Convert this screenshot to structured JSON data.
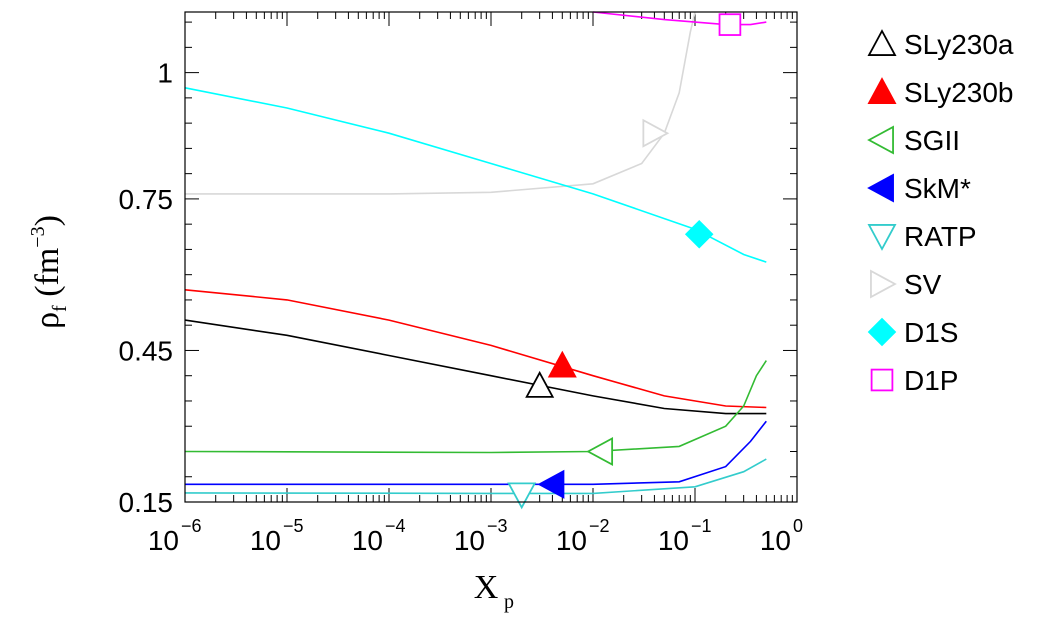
{
  "chart_data": {
    "type": "line",
    "xscale": "log",
    "xlim": [
      1e-06,
      1
    ],
    "ylim": [
      0.15,
      1.12
    ],
    "xlabel": {
      "main": "X",
      "sub": "p"
    },
    "ylabel": {
      "main": "ρ",
      "sub": "f",
      "unit": "(fm",
      "unit_exp": "−3",
      "unit_close": ")"
    },
    "xticks": [
      {
        "base": "10",
        "exp": "−6",
        "value": 1e-06
      },
      {
        "base": "10",
        "exp": "−5",
        "value": 1e-05
      },
      {
        "base": "10",
        "exp": "−4",
        "value": 0.0001
      },
      {
        "base": "10",
        "exp": "−3",
        "value": 0.001
      },
      {
        "base": "10",
        "exp": "−2",
        "value": 0.01
      },
      {
        "base": "10",
        "exp": "−1",
        "value": 0.1
      },
      {
        "base": "10",
        "exp": "0",
        "value": 1
      }
    ],
    "yticks": [
      {
        "label": "0.15",
        "value": 0.15
      },
      {
        "label": "0.45",
        "value": 0.45
      },
      {
        "label": "0.75",
        "value": 0.75
      },
      {
        "label": "1",
        "value": 1.0
      }
    ],
    "series": [
      {
        "name": "SLy230a",
        "color": "#000000",
        "marker": "triangle-up",
        "filled": false,
        "marker_at": [
          0.003,
          0.38
        ],
        "points": [
          [
            1e-06,
            0.51
          ],
          [
            1e-05,
            0.48
          ],
          [
            0.0001,
            0.44
          ],
          [
            0.001,
            0.4
          ],
          [
            0.01,
            0.36
          ],
          [
            0.05,
            0.335
          ],
          [
            0.2,
            0.325
          ],
          [
            0.5,
            0.325
          ]
        ]
      },
      {
        "name": "SLy230b",
        "color": "#ff0000",
        "marker": "triangle-up",
        "filled": true,
        "marker_at": [
          0.005,
          0.42
        ],
        "points": [
          [
            1e-06,
            0.57
          ],
          [
            1e-05,
            0.55
          ],
          [
            0.0001,
            0.51
          ],
          [
            0.001,
            0.46
          ],
          [
            0.01,
            0.4
          ],
          [
            0.05,
            0.36
          ],
          [
            0.2,
            0.34
          ],
          [
            0.5,
            0.337
          ]
        ]
      },
      {
        "name": "SGII",
        "color": "#33bb33",
        "marker": "triangle-left",
        "filled": false,
        "marker_at": [
          0.012,
          0.25
        ],
        "points": [
          [
            1e-06,
            0.25
          ],
          [
            0.001,
            0.248
          ],
          [
            0.01,
            0.25
          ],
          [
            0.07,
            0.26
          ],
          [
            0.2,
            0.3
          ],
          [
            0.3,
            0.34
          ],
          [
            0.4,
            0.4
          ],
          [
            0.5,
            0.43
          ]
        ]
      },
      {
        "name": "SkM*",
        "color": "#0000ff",
        "marker": "triangle-left",
        "filled": true,
        "marker_at": [
          0.004,
          0.185
        ],
        "points": [
          [
            1e-06,
            0.185
          ],
          [
            0.001,
            0.185
          ],
          [
            0.01,
            0.185
          ],
          [
            0.07,
            0.19
          ],
          [
            0.2,
            0.22
          ],
          [
            0.35,
            0.27
          ],
          [
            0.5,
            0.31
          ]
        ]
      },
      {
        "name": "RATP",
        "color": "#33cccc",
        "marker": "triangle-down",
        "filled": false,
        "marker_at": [
          0.002,
          0.165
        ],
        "points": [
          [
            1e-06,
            0.168
          ],
          [
            0.001,
            0.167
          ],
          [
            0.01,
            0.167
          ],
          [
            0.1,
            0.18
          ],
          [
            0.3,
            0.21
          ],
          [
            0.5,
            0.235
          ]
        ]
      },
      {
        "name": "SV",
        "color": "#d8d8d8",
        "marker": "triangle-right",
        "filled": false,
        "marker_at": [
          0.04,
          0.88
        ],
        "points": [
          [
            1e-06,
            0.76
          ],
          [
            0.0001,
            0.76
          ],
          [
            0.001,
            0.763
          ],
          [
            0.01,
            0.78
          ],
          [
            0.03,
            0.82
          ],
          [
            0.05,
            0.88
          ],
          [
            0.07,
            0.96
          ],
          [
            0.09,
            1.08
          ],
          [
            0.1,
            1.12
          ]
        ]
      },
      {
        "name": "D1S",
        "color": "#00ffff",
        "marker": "diamond",
        "filled": true,
        "marker_at": [
          0.11,
          0.68
        ],
        "points": [
          [
            1e-06,
            0.97
          ],
          [
            1e-05,
            0.93
          ],
          [
            0.0001,
            0.88
          ],
          [
            0.001,
            0.82
          ],
          [
            0.01,
            0.76
          ],
          [
            0.1,
            0.69
          ],
          [
            0.3,
            0.64
          ],
          [
            0.5,
            0.625
          ]
        ]
      },
      {
        "name": "D1P",
        "color": "#ff00ff",
        "marker": "square",
        "filled": false,
        "marker_at": [
          0.22,
          1.095
        ],
        "points": [
          [
            0.01,
            1.12
          ],
          [
            0.05,
            1.105
          ],
          [
            0.1,
            1.1
          ],
          [
            0.2,
            1.095
          ],
          [
            0.35,
            1.095
          ],
          [
            0.5,
            1.1
          ]
        ]
      }
    ],
    "legend_position": "right"
  }
}
